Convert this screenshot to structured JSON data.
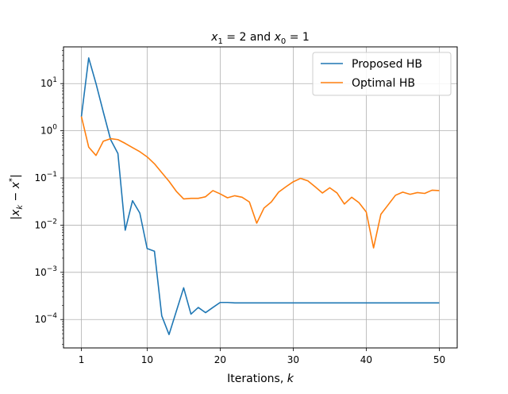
{
  "chart_data": {
    "type": "line",
    "title": "x1 = 2 and x0 = 1",
    "title_parts": {
      "a": "x",
      "a_sub": "1",
      "a_rest": " = 2 and ",
      "b": "x",
      "b_sub": "0",
      "b_rest": " = 1"
    },
    "xlabel": "Iterations, k",
    "xlabel_parts": {
      "text": "Iterations, ",
      "var": "k"
    },
    "ylabel": "|xk − x*|",
    "ylabel_parts": {
      "open": "|",
      "x": "x",
      "x_sub": "k",
      "minus": " − ",
      "xs": "x",
      "star": "*",
      "close": "|"
    },
    "x_scale": "linear",
    "y_scale": "log",
    "xlim": [
      -1.45,
      52.45
    ],
    "ylim": [
      2.5e-05,
      60
    ],
    "x_ticks": [
      1,
      10,
      20,
      30,
      40,
      50
    ],
    "y_ticks": [
      {
        "value": 0.0001,
        "base": "10",
        "exp": "−4"
      },
      {
        "value": 0.001,
        "base": "10",
        "exp": "−3"
      },
      {
        "value": 0.01,
        "base": "10",
        "exp": "−2"
      },
      {
        "value": 0.1,
        "base": "10",
        "exp": "−1"
      },
      {
        "value": 1,
        "base": "10",
        "exp": "0"
      },
      {
        "value": 10,
        "base": "10",
        "exp": "1"
      }
    ],
    "grid": true,
    "legend_position": "top-right",
    "series": [
      {
        "name": "Proposed HB",
        "color": "#1f77b4",
        "x": [
          1,
          2,
          3,
          4,
          5,
          6,
          7,
          8,
          9,
          10,
          11,
          12,
          13,
          14,
          15,
          16,
          17,
          18,
          19,
          20,
          21,
          22,
          23,
          24,
          25,
          26,
          27,
          28,
          29,
          30,
          31,
          32,
          33,
          34,
          35,
          36,
          37,
          38,
          39,
          40,
          41,
          42,
          43,
          44,
          45,
          46,
          47,
          48,
          49,
          50
        ],
        "values": [
          2,
          35,
          10,
          2.5,
          0.65,
          0.33,
          0.0078,
          0.033,
          0.018,
          0.0032,
          0.0028,
          0.00012,
          4.8e-05,
          0.00015,
          0.00047,
          0.00013,
          0.00018,
          0.00014,
          0.00018,
          0.00023,
          0.00023,
          0.000225,
          0.000225,
          0.000225,
          0.000225,
          0.000225,
          0.000225,
          0.000225,
          0.000225,
          0.000225,
          0.000225,
          0.000225,
          0.000225,
          0.000225,
          0.000225,
          0.000225,
          0.000225,
          0.000225,
          0.000225,
          0.000225,
          0.000225,
          0.000225,
          0.000225,
          0.000225,
          0.000225,
          0.000225,
          0.000225,
          0.000225,
          0.000225,
          0.000225
        ]
      },
      {
        "name": "Optimal HB",
        "color": "#ff7f0e",
        "x": [
          1,
          2,
          3,
          4,
          5,
          6,
          7,
          8,
          9,
          10,
          11,
          12,
          13,
          14,
          15,
          16,
          17,
          18,
          19,
          20,
          21,
          22,
          23,
          24,
          25,
          26,
          27,
          28,
          29,
          30,
          31,
          32,
          33,
          34,
          35,
          36,
          37,
          38,
          39,
          40,
          41,
          42,
          43,
          44,
          45,
          46,
          47,
          48,
          49,
          50
        ],
        "values": [
          2,
          0.45,
          0.3,
          0.6,
          0.68,
          0.65,
          0.54,
          0.44,
          0.36,
          0.28,
          0.2,
          0.13,
          0.085,
          0.052,
          0.036,
          0.037,
          0.037,
          0.04,
          0.054,
          0.046,
          0.038,
          0.042,
          0.039,
          0.031,
          0.011,
          0.023,
          0.031,
          0.05,
          0.065,
          0.083,
          0.098,
          0.087,
          0.065,
          0.048,
          0.062,
          0.048,
          0.028,
          0.039,
          0.03,
          0.019,
          0.0033,
          0.017,
          0.027,
          0.043,
          0.05,
          0.045,
          0.049,
          0.047,
          0.055,
          0.054
        ]
      }
    ]
  }
}
